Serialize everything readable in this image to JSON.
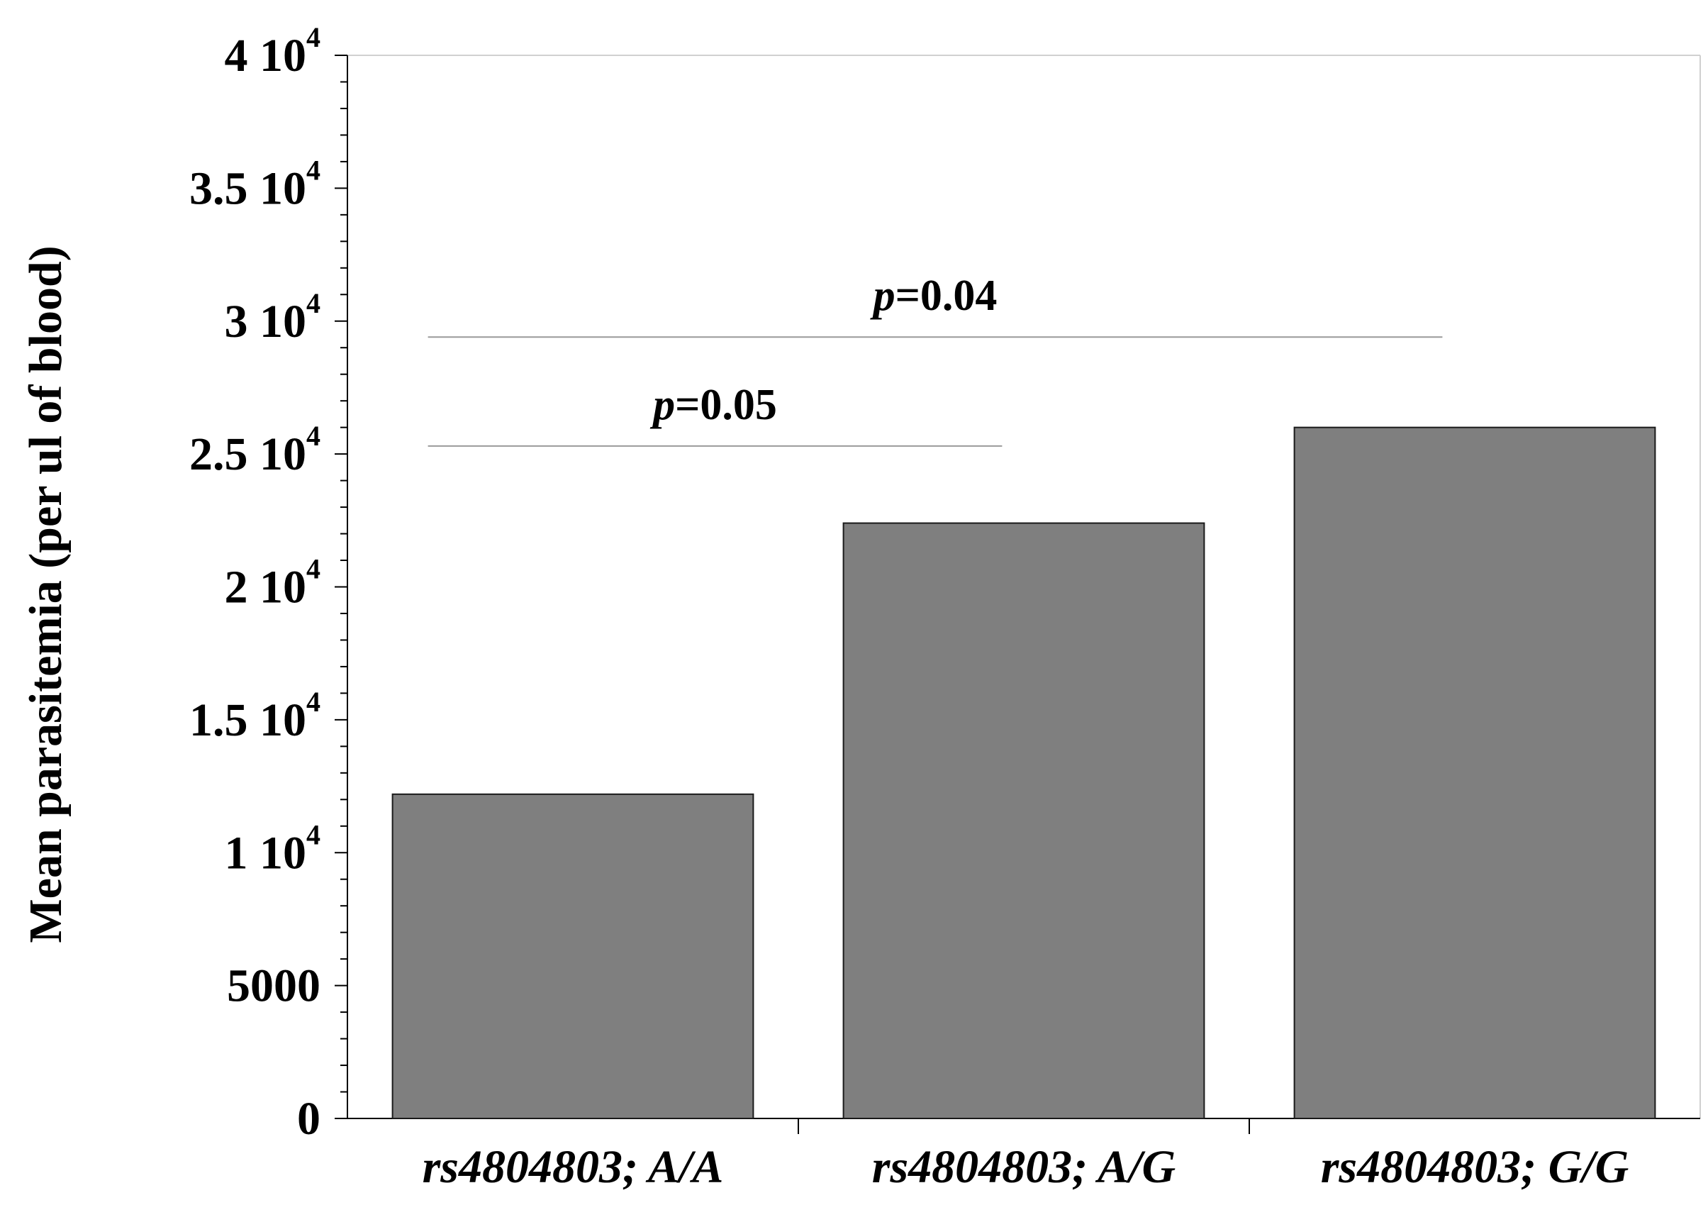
{
  "chart_data": {
    "type": "bar",
    "title": "",
    "xlabel": "",
    "ylabel": "Mean parasitemia (per ul of blood)",
    "categories": [
      "rs4804803; A/A",
      "rs4804803; A/G",
      "rs4804803; G/G"
    ],
    "values": [
      12200,
      22400,
      26000
    ],
    "ylim": [
      0,
      40000
    ],
    "yticks": [
      {
        "value": 0,
        "base": "0",
        "exp": ""
      },
      {
        "value": 5000,
        "base": "5000",
        "exp": ""
      },
      {
        "value": 10000,
        "base": "1 10",
        "exp": "4"
      },
      {
        "value": 15000,
        "base": "1.5 10",
        "exp": "4"
      },
      {
        "value": 20000,
        "base": "2 10",
        "exp": "4"
      },
      {
        "value": 25000,
        "base": "2.5 10",
        "exp": "4"
      },
      {
        "value": 30000,
        "base": "3 10",
        "exp": "4"
      },
      {
        "value": 35000,
        "base": "3.5 10",
        "exp": "4"
      },
      {
        "value": 40000,
        "base": "4 10",
        "exp": "4"
      }
    ],
    "minor_tick_step": 1000,
    "grid": false,
    "bar_color": "#7f7f7f",
    "annotations": [
      {
        "p_symbol": "p",
        "text": "=0.05",
        "from_category": 0,
        "to_category": 1,
        "y": 25300
      },
      {
        "p_symbol": "p",
        "text": "=0.04",
        "from_category": 0,
        "to_category": 2,
        "y": 29400
      }
    ]
  }
}
